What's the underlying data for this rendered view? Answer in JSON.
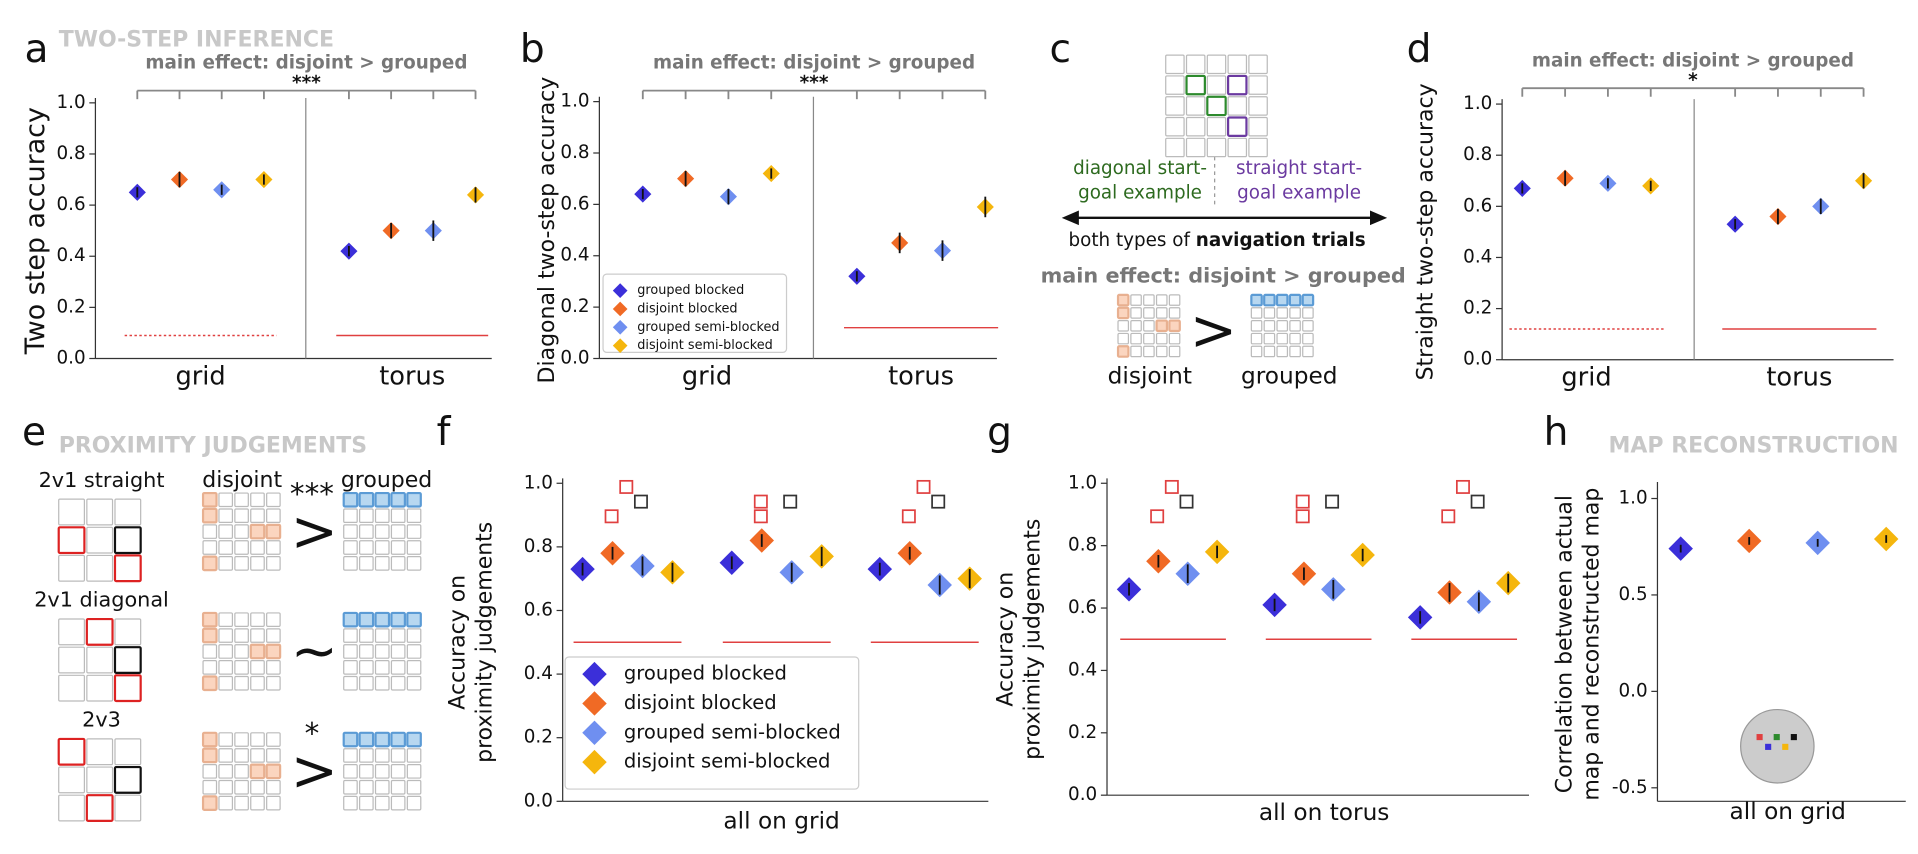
{
  "chart_data": [
    {
      "type": "dot",
      "panel": "a",
      "section": "TWO-STEP INFERENCE",
      "annotation": "main effect: disjoint > grouped",
      "significance": "***",
      "ylabel": "Two step accuracy",
      "categories": [
        "grid",
        "torus"
      ],
      "series": [
        {
          "color": "#3b2fd9",
          "values": [
            0.65,
            0.42
          ],
          "errors": [
            0.02,
            0.02
          ]
        },
        {
          "color": "#f06a25",
          "values": [
            0.7,
            0.5
          ],
          "errors": [
            0.03,
            0.03
          ]
        },
        {
          "color": "#6f8ff0",
          "values": [
            0.66,
            0.5
          ],
          "errors": [
            0.02,
            0.04
          ]
        },
        {
          "color": "#f5b60d",
          "values": [
            0.7,
            0.64
          ],
          "errors": [
            0.02,
            0.03
          ]
        }
      ],
      "chance": [
        0.09,
        0.09
      ],
      "chance_style": [
        "dotted",
        "solid"
      ],
      "ylim": [
        0,
        1.0
      ],
      "yticks": [
        {
          "value": 0,
          "label": "0.0"
        },
        0.2,
        0.4,
        0.6,
        0.8,
        {
          "value": 1,
          "label": "1.0"
        }
      ]
    },
    {
      "type": "dot",
      "panel": "b",
      "annotation": "main effect: disjoint > grouped",
      "significance": "***",
      "ylabel": "Diagonal two-step accuracy",
      "categories": [
        "grid",
        "torus"
      ],
      "series": [
        {
          "name": "grouped blocked",
          "color": "#3b2fd9",
          "values": [
            0.64,
            0.32
          ],
          "errors": [
            0.02,
            0.02
          ]
        },
        {
          "name": "disjoint blocked",
          "color": "#f06a25",
          "values": [
            0.7,
            0.45
          ],
          "errors": [
            0.03,
            0.04
          ]
        },
        {
          "name": "grouped semi-blocked",
          "color": "#6f8ff0",
          "values": [
            0.63,
            0.42
          ],
          "errors": [
            0.03,
            0.04
          ]
        },
        {
          "name": "disjoint semi-blocked",
          "color": "#f5b60d",
          "values": [
            0.72,
            0.59
          ],
          "errors": [
            0.02,
            0.04
          ]
        }
      ],
      "chance": [
        null,
        0.12
      ],
      "chance_style": [
        "dotted",
        "solid"
      ],
      "legend": "lower left",
      "ylim": [
        0,
        1.0
      ],
      "yticks": [
        {
          "value": 0,
          "label": "0.0"
        },
        0.2,
        0.4,
        0.6,
        0.8,
        {
          "value": 1,
          "label": "1.0"
        }
      ]
    },
    {
      "type": "dot",
      "panel": "d",
      "annotation": "main effect: disjoint > grouped",
      "significance": "*",
      "ylabel": "Straight two-step accuracy",
      "categories": [
        "grid",
        "torus"
      ],
      "series": [
        {
          "color": "#3b2fd9",
          "values": [
            0.67,
            0.53
          ],
          "errors": [
            0.02,
            0.02
          ]
        },
        {
          "color": "#f06a25",
          "values": [
            0.71,
            0.56
          ],
          "errors": [
            0.03,
            0.03
          ]
        },
        {
          "color": "#6f8ff0",
          "values": [
            0.69,
            0.6
          ],
          "errors": [
            0.02,
            0.03
          ]
        },
        {
          "color": "#f5b60d",
          "values": [
            0.68,
            0.7
          ],
          "errors": [
            0.02,
            0.03
          ]
        }
      ],
      "chance": [
        0.12,
        0.12
      ],
      "chance_style": [
        "dotted",
        "solid"
      ],
      "ylim": [
        0,
        1.0
      ],
      "yticks": [
        {
          "value": 0,
          "label": "0.0"
        },
        0.2,
        0.4,
        0.6,
        0.8,
        {
          "value": 1,
          "label": "1.0"
        }
      ]
    },
    {
      "type": "dot",
      "panel": "f",
      "ylabel": [
        "Accuracy on",
        "proximity judgements"
      ],
      "xlabel": "all on grid",
      "categories": [
        null,
        null,
        null
      ],
      "series": [
        {
          "name": "grouped blocked",
          "color": "#3b2fd9",
          "values": [
            0.73,
            0.75,
            0.73
          ],
          "errors": [
            0.02,
            0.02,
            0.02
          ]
        },
        {
          "name": "disjoint blocked",
          "color": "#f06a25",
          "values": [
            0.78,
            0.82,
            0.78
          ],
          "errors": [
            0.02,
            0.02,
            0.02
          ]
        },
        {
          "name": "grouped semi-blocked",
          "color": "#6f8ff0",
          "values": [
            0.74,
            0.72,
            0.68
          ],
          "errors": [
            0.03,
            0.03,
            0.03
          ]
        },
        {
          "name": "disjoint semi-blocked",
          "color": "#f5b60d",
          "values": [
            0.72,
            0.77,
            0.7
          ],
          "errors": [
            0.03,
            0.03,
            0.03
          ]
        }
      ],
      "chance": [
        0.5,
        0.5,
        0.5
      ],
      "chance_style": [
        "solid",
        "solid",
        "solid"
      ],
      "legend": "lower left",
      "ylim": [
        0,
        1.0
      ],
      "yticks": [
        {
          "value": 0,
          "label": "0.0"
        },
        0.2,
        0.4,
        0.6,
        0.8,
        {
          "value": 1,
          "label": "1.0"
        }
      ]
    },
    {
      "type": "dot",
      "panel": "g",
      "ylabel": [
        "Accuracy on",
        "proximity judgements"
      ],
      "xlabel": "all on torus",
      "categories": [
        null,
        null,
        null
      ],
      "series": [
        {
          "color": "#3b2fd9",
          "values": [
            0.66,
            0.61,
            0.57
          ],
          "errors": [
            0.02,
            0.02,
            0.02
          ]
        },
        {
          "color": "#f06a25",
          "values": [
            0.75,
            0.71,
            0.65
          ],
          "errors": [
            0.02,
            0.02,
            0.03
          ]
        },
        {
          "color": "#6f8ff0",
          "values": [
            0.71,
            0.66,
            0.62
          ],
          "errors": [
            0.03,
            0.03,
            0.03
          ]
        },
        {
          "color": "#f5b60d",
          "values": [
            0.78,
            0.77,
            0.68
          ],
          "errors": [
            0.02,
            0.02,
            0.03
          ]
        }
      ],
      "chance": [
        0.5,
        0.5,
        0.5
      ],
      "chance_style": [
        "solid",
        "solid",
        "solid"
      ],
      "ylim": [
        0,
        1.0
      ],
      "yticks": [
        {
          "value": 0,
          "label": "0.0"
        },
        0.2,
        0.4,
        0.6,
        0.8,
        {
          "value": 1,
          "label": "1.0"
        }
      ]
    },
    {
      "type": "dot",
      "panel": "h",
      "section": "MAP RECONSTRUCTION",
      "ylabel": [
        "Correlation between actual",
        "map and reconstructed map"
      ],
      "xlabel": "all on grid",
      "categories": [
        null
      ],
      "series": [
        {
          "color": "#3b2fd9",
          "values": [
            0.74
          ],
          "errors": [
            0.02
          ]
        },
        {
          "color": "#f06a25",
          "values": [
            0.78
          ],
          "errors": [
            0.02
          ]
        },
        {
          "color": "#6f8ff0",
          "values": [
            0.77
          ],
          "errors": [
            0.02
          ]
        },
        {
          "color": "#f5b60d",
          "values": [
            0.79
          ],
          "errors": [
            0.02
          ]
        }
      ],
      "ylim": [
        -0.57,
        1.06
      ],
      "yticks": [
        -0.5,
        {
          "value": 0,
          "label": "0.0"
        },
        0.5,
        {
          "value": 1,
          "label": "1.0"
        }
      ]
    }
  ],
  "diagrams": {
    "c": {
      "letter": "c",
      "diagonal": [
        "diagonal start-",
        "goal example"
      ],
      "straight": [
        "straight start-",
        "goal example"
      ],
      "nav_prefix": "both types of ",
      "nav_bold": "navigation trials",
      "effect": "main effect: disjoint > grouped",
      "relation": ">",
      "disjoint": "disjoint",
      "grouped": "grouped"
    },
    "e": {
      "letter": "e",
      "section": "PROXIMITY JUDGEMENTS",
      "disjoint": "disjoint",
      "grouped": "grouped",
      "rows": [
        {
          "label": "2v1 straight",
          "relation": ">",
          "sig": "***"
        },
        {
          "label": "2v1 diagonal",
          "relation": "~"
        },
        {
          "label": "2v3",
          "relation": ">",
          "sig": "*"
        }
      ]
    }
  }
}
